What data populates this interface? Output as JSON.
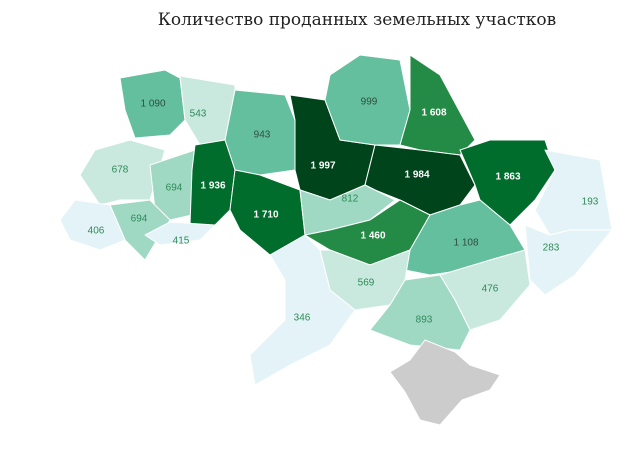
{
  "chart_data": {
    "type": "map",
    "title": "Количество проданных земельных участков",
    "values": [
      1090,
      543,
      943,
      1997,
      999,
      1608,
      1984,
      1863,
      193,
      283,
      678,
      694,
      1936,
      1710,
      812,
      1460,
      1108,
      694,
      406,
      415,
      569,
      476,
      346,
      893
    ],
    "value_labels": [
      "1 090",
      "543",
      "943",
      "1 997",
      "999",
      "1 608",
      "1 984",
      "1 863",
      "193",
      "283",
      "678",
      "694",
      "1 936",
      "1 710",
      "812",
      "1 460",
      "1 108",
      "694",
      "406",
      "415",
      "569",
      "476",
      "346",
      "893"
    ],
    "colors": [
      "#63bf9e",
      "#c9e9df",
      "#63bf9e",
      "#00441b",
      "#63bf9e",
      "#238b45",
      "#00441b",
      "#006d2c",
      "#e4f3f7",
      "#e4f3f7",
      "#c9e9df",
      "#9fd9c3",
      "#006d2c",
      "#006d2c",
      "#9fd9c3",
      "#238b45",
      "#63bf9e",
      "#9fd9c3",
      "#e4f3f7",
      "#e4f3f7",
      "#c9e9df",
      "#c9e9df",
      "#e4f3f7",
      "#9fd9c3"
    ]
  }
}
